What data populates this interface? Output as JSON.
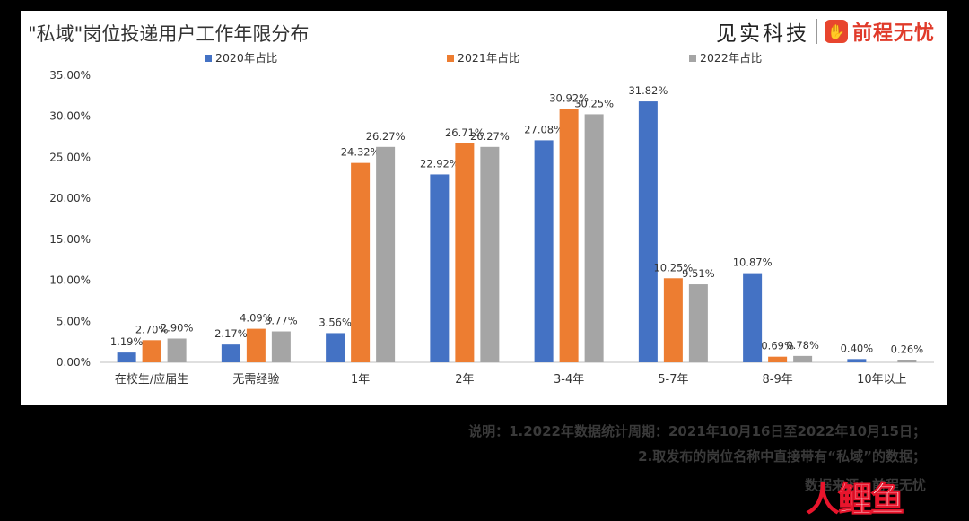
{
  "brand": {
    "partner": "见实科技",
    "logo_glyph": "✋",
    "name": "前程无忧"
  },
  "notes": {
    "line1": "说明：1.2022年数据统计周期：2021年10月16日至2022年10月15日；",
    "line2": "2.取发布的岗位名称中直接带有“私域”的数据；",
    "line3": "数据来源：前程无忧"
  },
  "watermark": {
    "part1": "人",
    "part2": "鲤鱼"
  },
  "chart_data": {
    "type": "bar",
    "title": "\"私域\"岗位投递用户工作年限分布",
    "categories": [
      "在校生/应届生",
      "无需经验",
      "1年",
      "2年",
      "3-4年",
      "5-7年",
      "8-9年",
      "10年以上"
    ],
    "series": [
      {
        "name": "2020年占比",
        "color": "#4472C4",
        "values": [
          1.19,
          2.17,
          3.56,
          22.92,
          27.08,
          31.82,
          10.87,
          0.4
        ]
      },
      {
        "name": "2021年占比",
        "color": "#ED7D31",
        "values": [
          2.7,
          4.09,
          24.32,
          26.71,
          30.92,
          10.25,
          0.69,
          null
        ]
      },
      {
        "name": "2022年占比",
        "color": "#A5A5A5",
        "values": [
          2.9,
          3.77,
          26.27,
          26.27,
          30.25,
          9.51,
          0.78,
          0.26
        ]
      }
    ],
    "ylim": [
      0,
      35
    ],
    "yticks": [
      0,
      5,
      10,
      15,
      20,
      25,
      30,
      35
    ],
    "ytick_format": "0.00%",
    "legend_position": "top",
    "grid": false
  }
}
